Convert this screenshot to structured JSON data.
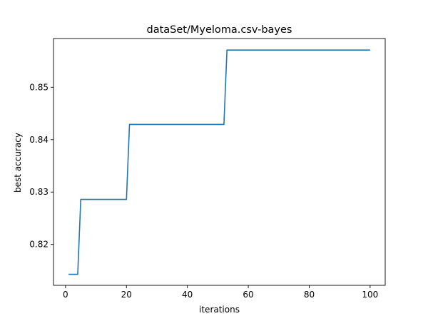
{
  "chart_data": {
    "type": "line",
    "title": "dataSet/Myeloma.csv-bayes",
    "xlabel": "iterations",
    "ylabel": "best accuracy",
    "xlim": [
      -3.95,
      104.95
    ],
    "ylim": [
      0.8122,
      0.8593
    ],
    "xticks": [
      0,
      20,
      40,
      60,
      80,
      100
    ],
    "yticks": [
      0.82,
      0.83,
      0.84,
      0.85
    ],
    "xtick_labels": [
      "0",
      "20",
      "40",
      "60",
      "80",
      "100"
    ],
    "ytick_labels": [
      "0.82",
      "0.83",
      "0.84",
      "0.85"
    ],
    "grid": false,
    "series": [
      {
        "color": "#1f77b4",
        "x": [
          1,
          4,
          5,
          20,
          21,
          52,
          53,
          100
        ],
        "y": [
          0.8143,
          0.8143,
          0.8286,
          0.8286,
          0.8429,
          0.8429,
          0.8571,
          0.8571
        ]
      }
    ]
  }
}
